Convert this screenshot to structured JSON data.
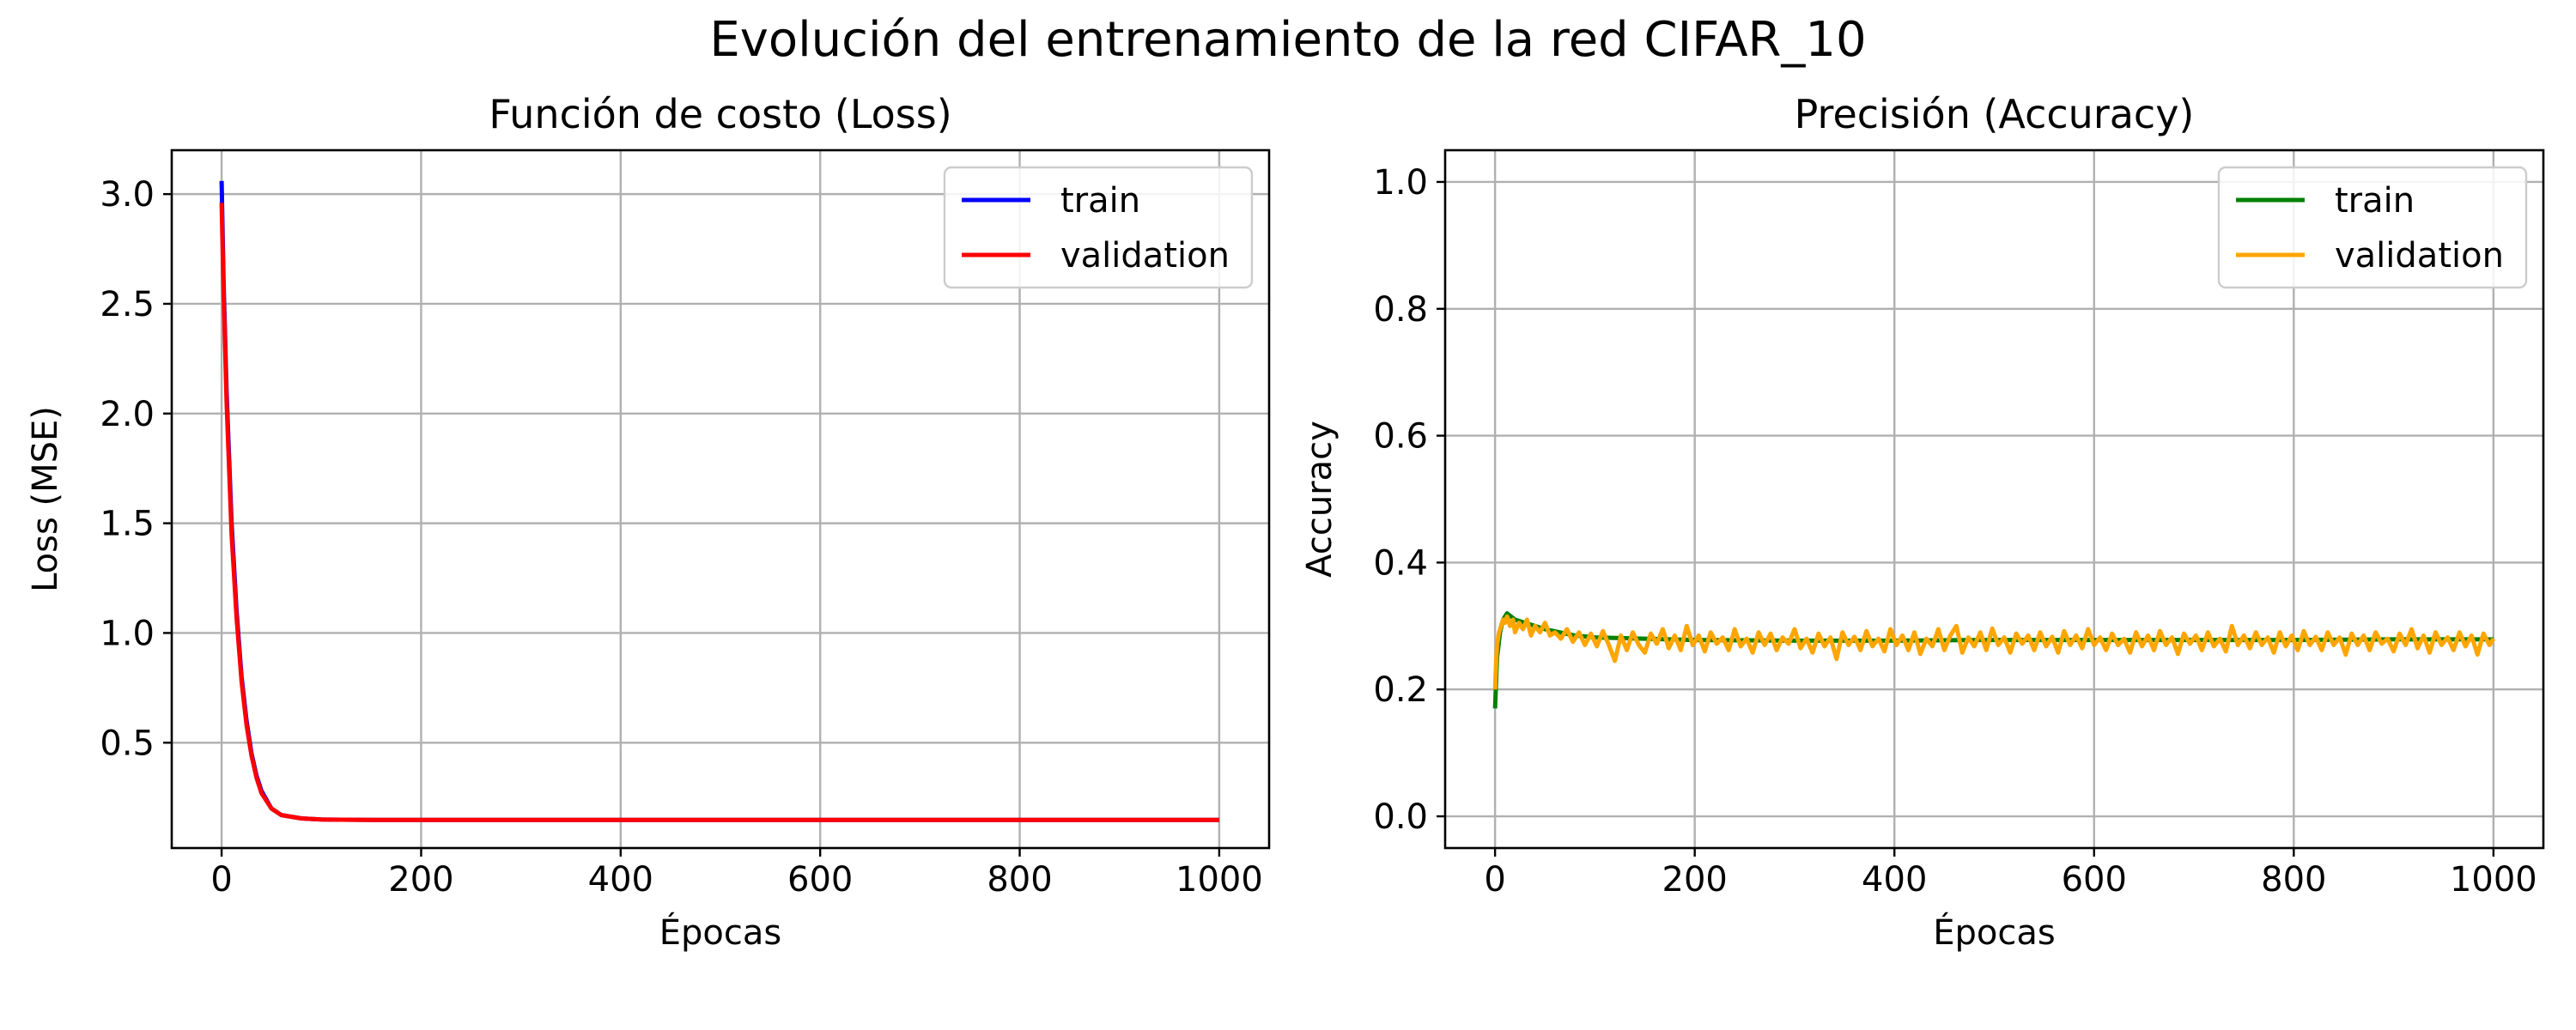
{
  "figure": {
    "title": "Evolución del entrenamiento de la red CIFAR_10"
  },
  "chart_data": [
    {
      "type": "line",
      "title": "Función de costo (Loss)",
      "xlabel": "Épocas",
      "ylabel": "Loss (MSE)",
      "xlim": [
        -50,
        1050
      ],
      "ylim": [
        0.02,
        3.2
      ],
      "xticks": [
        0,
        200,
        400,
        600,
        800,
        1000
      ],
      "yticks": [
        0.5,
        1.0,
        1.5,
        2.0,
        2.5,
        3.0
      ],
      "xtick_labels": [
        "0",
        "200",
        "400",
        "600",
        "800",
        "1000"
      ],
      "ytick_labels": [
        "0.5",
        "1.0",
        "1.5",
        "2.0",
        "2.5",
        "3.0"
      ],
      "grid": true,
      "legend": "upper right",
      "series": [
        {
          "name": "train",
          "color": "#0000ff",
          "points": [
            [
              0,
              3.06
            ],
            [
              2,
              2.6
            ],
            [
              5,
              2.1
            ],
            [
              10,
              1.5
            ],
            [
              15,
              1.1
            ],
            [
              20,
              0.8
            ],
            [
              25,
              0.6
            ],
            [
              30,
              0.45
            ],
            [
              35,
              0.35
            ],
            [
              40,
              0.28
            ],
            [
              50,
              0.2
            ],
            [
              60,
              0.17
            ],
            [
              80,
              0.155
            ],
            [
              100,
              0.15
            ],
            [
              150,
              0.148
            ],
            [
              200,
              0.148
            ],
            [
              400,
              0.148
            ],
            [
              600,
              0.148
            ],
            [
              800,
              0.148
            ],
            [
              1000,
              0.148
            ]
          ]
        },
        {
          "name": "validation",
          "color": "#ff0000",
          "points": [
            [
              0,
              2.96
            ],
            [
              2,
              2.55
            ],
            [
              5,
              2.05
            ],
            [
              10,
              1.45
            ],
            [
              15,
              1.07
            ],
            [
              20,
              0.78
            ],
            [
              25,
              0.58
            ],
            [
              30,
              0.44
            ],
            [
              35,
              0.34
            ],
            [
              40,
              0.27
            ],
            [
              50,
              0.2
            ],
            [
              60,
              0.17
            ],
            [
              80,
              0.155
            ],
            [
              100,
              0.15
            ],
            [
              150,
              0.148
            ],
            [
              200,
              0.148
            ],
            [
              400,
              0.148
            ],
            [
              600,
              0.148
            ],
            [
              800,
              0.148
            ],
            [
              1000,
              0.148
            ]
          ]
        }
      ]
    },
    {
      "type": "line",
      "title": "Precisión (Accuracy)",
      "xlabel": "Épocas",
      "ylabel": "Accuracy",
      "xlim": [
        -50,
        1050
      ],
      "ylim": [
        -0.05,
        1.05
      ],
      "xticks": [
        0,
        200,
        400,
        600,
        800,
        1000
      ],
      "yticks": [
        0.0,
        0.2,
        0.4,
        0.6,
        0.8,
        1.0
      ],
      "xtick_labels": [
        "0",
        "200",
        "400",
        "600",
        "800",
        "1000"
      ],
      "ytick_labels": [
        "0.0",
        "0.2",
        "0.4",
        "0.6",
        "0.8",
        "1.0"
      ],
      "grid": true,
      "legend": "upper right",
      "series": [
        {
          "name": "train",
          "color": "#008000",
          "points": [
            [
              0,
              0.17
            ],
            [
              2,
              0.25
            ],
            [
              5,
              0.29
            ],
            [
              8,
              0.31
            ],
            [
              12,
              0.32
            ],
            [
              20,
              0.31
            ],
            [
              30,
              0.305
            ],
            [
              50,
              0.295
            ],
            [
              80,
              0.285
            ],
            [
              100,
              0.282
            ],
            [
              150,
              0.28
            ],
            [
              200,
              0.278
            ],
            [
              300,
              0.277
            ],
            [
              400,
              0.277
            ],
            [
              500,
              0.278
            ],
            [
              600,
              0.278
            ],
            [
              700,
              0.278
            ],
            [
              800,
              0.278
            ],
            [
              900,
              0.279
            ],
            [
              1000,
              0.279
            ]
          ]
        },
        {
          "name": "validation",
          "color": "#ffa500",
          "points": [
            [
              0,
              0.2
            ],
            [
              1,
              0.24
            ],
            [
              2,
              0.27
            ],
            [
              4,
              0.29
            ],
            [
              6,
              0.3
            ],
            [
              8,
              0.31
            ],
            [
              10,
              0.305
            ],
            [
              12,
              0.315
            ],
            [
              15,
              0.3
            ],
            [
              18,
              0.31
            ],
            [
              20,
              0.29
            ],
            [
              24,
              0.305
            ],
            [
              28,
              0.295
            ],
            [
              32,
              0.31
            ],
            [
              36,
              0.285
            ],
            [
              40,
              0.3
            ],
            [
              45,
              0.29
            ],
            [
              50,
              0.305
            ],
            [
              55,
              0.285
            ],
            [
              60,
              0.29
            ],
            [
              66,
              0.28
            ],
            [
              72,
              0.295
            ],
            [
              78,
              0.275
            ],
            [
              84,
              0.29
            ],
            [
              90,
              0.27
            ],
            [
              96,
              0.288
            ],
            [
              102,
              0.268
            ],
            [
              108,
              0.292
            ],
            [
              114,
              0.27
            ],
            [
              120,
              0.245
            ],
            [
              126,
              0.285
            ],
            [
              132,
              0.262
            ],
            [
              138,
              0.29
            ],
            [
              144,
              0.27
            ],
            [
              150,
              0.258
            ],
            [
              156,
              0.288
            ],
            [
              162,
              0.272
            ],
            [
              168,
              0.295
            ],
            [
              174,
              0.265
            ],
            [
              180,
              0.285
            ],
            [
              186,
              0.262
            ],
            [
              192,
              0.3
            ],
            [
              198,
              0.27
            ],
            [
              204,
              0.285
            ],
            [
              210,
              0.26
            ],
            [
              216,
              0.29
            ],
            [
              222,
              0.272
            ],
            [
              228,
              0.282
            ],
            [
              234,
              0.262
            ],
            [
              240,
              0.295
            ],
            [
              246,
              0.268
            ],
            [
              252,
              0.28
            ],
            [
              258,
              0.258
            ],
            [
              264,
              0.29
            ],
            [
              270,
              0.27
            ],
            [
              276,
              0.288
            ],
            [
              282,
              0.262
            ],
            [
              288,
              0.282
            ],
            [
              294,
              0.272
            ],
            [
              300,
              0.295
            ],
            [
              306,
              0.265
            ],
            [
              312,
              0.28
            ],
            [
              318,
              0.258
            ],
            [
              324,
              0.288
            ],
            [
              330,
              0.268
            ],
            [
              336,
              0.282
            ],
            [
              342,
              0.248
            ],
            [
              348,
              0.29
            ],
            [
              354,
              0.27
            ],
            [
              360,
              0.283
            ],
            [
              366,
              0.262
            ],
            [
              372,
              0.292
            ],
            [
              378,
              0.268
            ],
            [
              384,
              0.28
            ],
            [
              390,
              0.26
            ],
            [
              396,
              0.295
            ],
            [
              402,
              0.27
            ],
            [
              408,
              0.285
            ],
            [
              414,
              0.262
            ],
            [
              420,
              0.29
            ],
            [
              426,
              0.256
            ],
            [
              432,
              0.28
            ],
            [
              438,
              0.268
            ],
            [
              444,
              0.295
            ],
            [
              450,
              0.262
            ],
            [
              456,
              0.285
            ],
            [
              462,
              0.3
            ],
            [
              468,
              0.258
            ],
            [
              474,
              0.282
            ],
            [
              480,
              0.268
            ],
            [
              486,
              0.29
            ],
            [
              492,
              0.262
            ],
            [
              498,
              0.296
            ],
            [
              504,
              0.27
            ],
            [
              510,
              0.282
            ],
            [
              516,
              0.258
            ],
            [
              522,
              0.288
            ],
            [
              528,
              0.272
            ],
            [
              534,
              0.285
            ],
            [
              540,
              0.262
            ],
            [
              546,
              0.29
            ],
            [
              552,
              0.268
            ],
            [
              558,
              0.283
            ],
            [
              564,
              0.258
            ],
            [
              570,
              0.292
            ],
            [
              576,
              0.27
            ],
            [
              582,
              0.285
            ],
            [
              588,
              0.265
            ],
            [
              594,
              0.295
            ],
            [
              600,
              0.27
            ],
            [
              606,
              0.282
            ],
            [
              612,
              0.262
            ],
            [
              618,
              0.288
            ],
            [
              624,
              0.27
            ],
            [
              630,
              0.28
            ],
            [
              636,
              0.258
            ],
            [
              642,
              0.29
            ],
            [
              648,
              0.268
            ],
            [
              654,
              0.285
            ],
            [
              660,
              0.262
            ],
            [
              666,
              0.292
            ],
            [
              672,
              0.27
            ],
            [
              678,
              0.282
            ],
            [
              684,
              0.256
            ],
            [
              690,
              0.288
            ],
            [
              696,
              0.272
            ],
            [
              702,
              0.285
            ],
            [
              708,
              0.262
            ],
            [
              714,
              0.29
            ],
            [
              720,
              0.268
            ],
            [
              726,
              0.28
            ],
            [
              732,
              0.26
            ],
            [
              738,
              0.3
            ],
            [
              744,
              0.27
            ],
            [
              750,
              0.285
            ],
            [
              756,
              0.265
            ],
            [
              762,
              0.29
            ],
            [
              768,
              0.27
            ],
            [
              774,
              0.282
            ],
            [
              780,
              0.258
            ],
            [
              786,
              0.29
            ],
            [
              792,
              0.268
            ],
            [
              798,
              0.285
            ],
            [
              804,
              0.262
            ],
            [
              810,
              0.292
            ],
            [
              816,
              0.27
            ],
            [
              822,
              0.283
            ],
            [
              828,
              0.262
            ],
            [
              834,
              0.29
            ],
            [
              840,
              0.27
            ],
            [
              846,
              0.282
            ],
            [
              852,
              0.255
            ],
            [
              858,
              0.288
            ],
            [
              864,
              0.27
            ],
            [
              870,
              0.285
            ],
            [
              876,
              0.262
            ],
            [
              882,
              0.29
            ],
            [
              888,
              0.272
            ],
            [
              894,
              0.28
            ],
            [
              900,
              0.26
            ],
            [
              906,
              0.288
            ],
            [
              912,
              0.27
            ],
            [
              918,
              0.295
            ],
            [
              924,
              0.265
            ],
            [
              930,
              0.285
            ],
            [
              936,
              0.258
            ],
            [
              942,
              0.29
            ],
            [
              948,
              0.27
            ],
            [
              954,
              0.282
            ],
            [
              960,
              0.262
            ],
            [
              966,
              0.29
            ],
            [
              972,
              0.268
            ],
            [
              978,
              0.285
            ],
            [
              984,
              0.255
            ],
            [
              990,
              0.288
            ],
            [
              996,
              0.27
            ],
            [
              1000,
              0.28
            ]
          ]
        }
      ]
    }
  ]
}
